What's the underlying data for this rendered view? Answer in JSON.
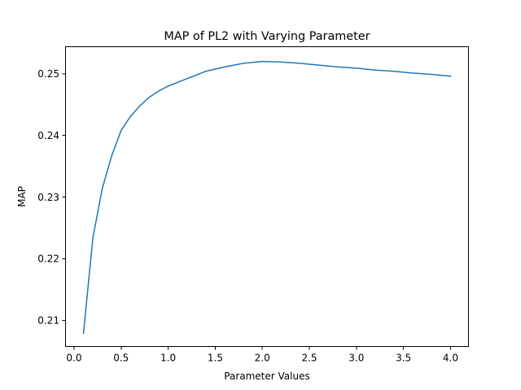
{
  "chart_data": {
    "type": "line",
    "title": "MAP of PL2 with Varying Parameter",
    "xlabel": "Parameter Values",
    "ylabel": "MAP",
    "xlim": [
      -0.095,
      4.195
    ],
    "ylim": [
      0.20566,
      0.25437
    ],
    "xticks": [
      0.0,
      0.5,
      1.0,
      1.5,
      2.0,
      2.5,
      3.0,
      3.5,
      4.0
    ],
    "xtick_labels": [
      "0.0",
      "0.5",
      "1.0",
      "1.5",
      "2.0",
      "2.5",
      "3.0",
      "3.5",
      "4.0"
    ],
    "yticks": [
      0.21,
      0.22,
      0.23,
      0.24,
      0.25
    ],
    "ytick_labels": [
      "0.21",
      "0.22",
      "0.23",
      "0.24",
      "0.25"
    ],
    "grid": false,
    "series_color": "#1f77b4",
    "series": [
      {
        "x": [
          0.1,
          0.2,
          0.3,
          0.4,
          0.5,
          0.6,
          0.7,
          0.8,
          0.9,
          1.0,
          1.2,
          1.4,
          1.6,
          1.8,
          2.0,
          2.2,
          2.4,
          2.6,
          2.8,
          3.0,
          3.2,
          3.4,
          3.6,
          3.8,
          4.0
        ],
        "values": [
          0.2079,
          0.2234,
          0.2314,
          0.2367,
          0.2408,
          0.2431,
          0.2448,
          0.2462,
          0.2472,
          0.248,
          0.2492,
          0.2504,
          0.2511,
          0.2517,
          0.252,
          0.2519,
          0.2517,
          0.2514,
          0.2511,
          0.2509,
          0.2506,
          0.2504,
          0.2501,
          0.2499,
          0.2496
        ]
      }
    ]
  }
}
